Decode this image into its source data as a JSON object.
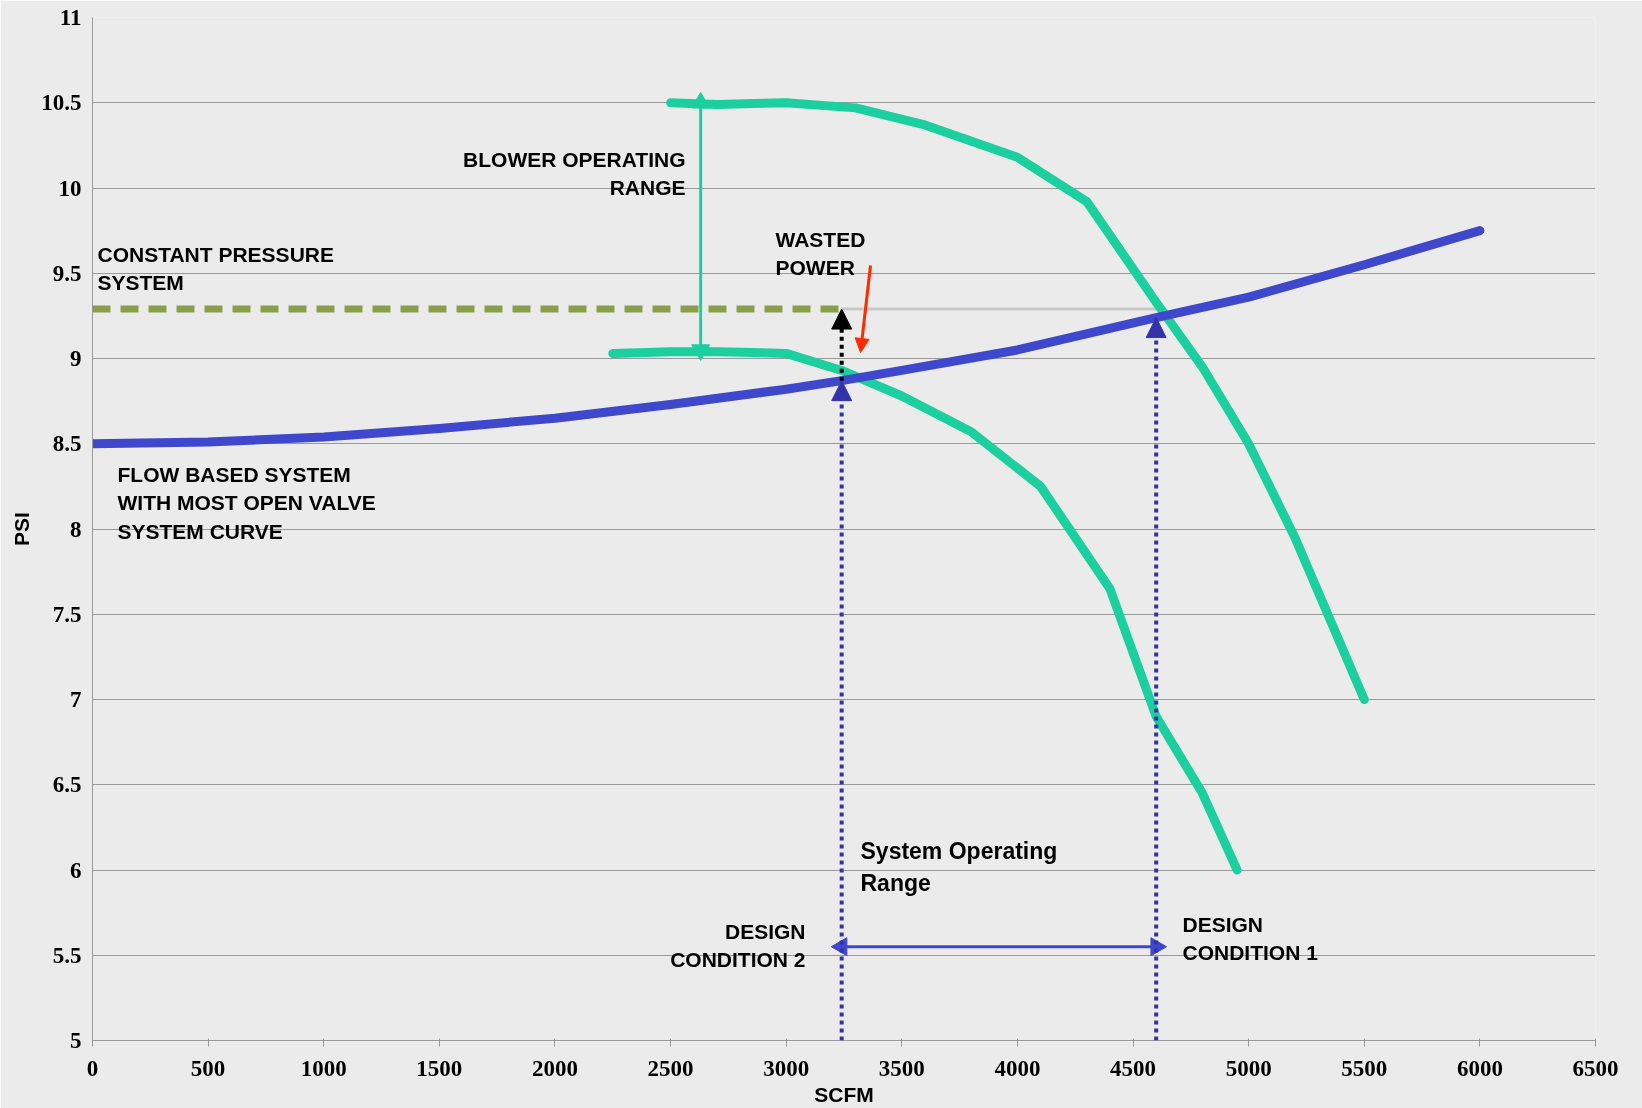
{
  "chart_data": {
    "type": "line",
    "xlabel": "SCFM",
    "ylabel": "PSI",
    "xlim": [
      0,
      6500
    ],
    "xticks": [
      0,
      500,
      1000,
      1500,
      2000,
      2500,
      3000,
      3500,
      4000,
      4500,
      5000,
      5500,
      6000,
      6500
    ],
    "ylim": [
      5,
      11
    ],
    "yticks": [
      5,
      5.5,
      6,
      6.5,
      7,
      7.5,
      8,
      8.5,
      9,
      9.5,
      10,
      10.5,
      11
    ],
    "grid": "y",
    "line_style": "solid",
    "series": [
      {
        "color": "#c8c8c8",
        "x": [
          3240,
          4600
        ],
        "values": [
          9.29,
          9.29
        ]
      },
      {
        "color": "#8a9e4a",
        "line_style": "dashed",
        "x": [
          0,
          3240
        ],
        "values": [
          9.29,
          9.29
        ]
      },
      {
        "color": "#1ccf9f",
        "x": [
          2500,
          2700,
          3000,
          3300,
          3600,
          4000,
          4300,
          4600,
          4800,
          5000,
          5200,
          5500
        ],
        "values": [
          10.5,
          10.49,
          10.5,
          10.47,
          10.37,
          10.18,
          9.92,
          9.33,
          8.95,
          8.5,
          7.95,
          7.0
        ]
      },
      {
        "color": "#1ccf9f",
        "x": [
          2250,
          2500,
          2700,
          3000,
          3240,
          3500,
          3800,
          4100,
          4400,
          4600,
          4800,
          4950
        ],
        "values": [
          9.03,
          9.04,
          9.04,
          9.03,
          8.93,
          8.78,
          8.57,
          8.25,
          7.65,
          6.9,
          6.45,
          6.0
        ]
      },
      {
        "color": "#3f48cc",
        "x": [
          0,
          500,
          1000,
          1500,
          2000,
          2500,
          3000,
          3240,
          3500,
          4000,
          4600,
          5000,
          5500,
          6000
        ],
        "values": [
          8.5,
          8.51,
          8.54,
          8.59,
          8.65,
          8.73,
          8.82,
          8.87,
          8.93,
          9.05,
          9.24,
          9.36,
          9.55,
          9.75
        ]
      },
      {
        "color": "#1ccf9f",
        "marker": "triangle",
        "x": [
          2630,
          2630
        ],
        "values": [
          9.05,
          10.5
        ]
      },
      {
        "color": "#3f48cc",
        "marker": "triangle",
        "x": [
          3240,
          4600
        ],
        "values": [
          5.55,
          5.55
        ]
      }
    ],
    "annotations": [
      "BLOWER OPERATING\nRANGE",
      "CONSTANT PRESSURE\nSYSTEM",
      "WASTED\nPOWER",
      "FLOW BASED SYSTEM\nWITH MOST OPEN VALVE\nSYSTEM CURVE",
      "System Operating\nRange",
      "DESIGN\nCONDITION 2",
      "DESIGN\nCONDITION 1"
    ]
  }
}
